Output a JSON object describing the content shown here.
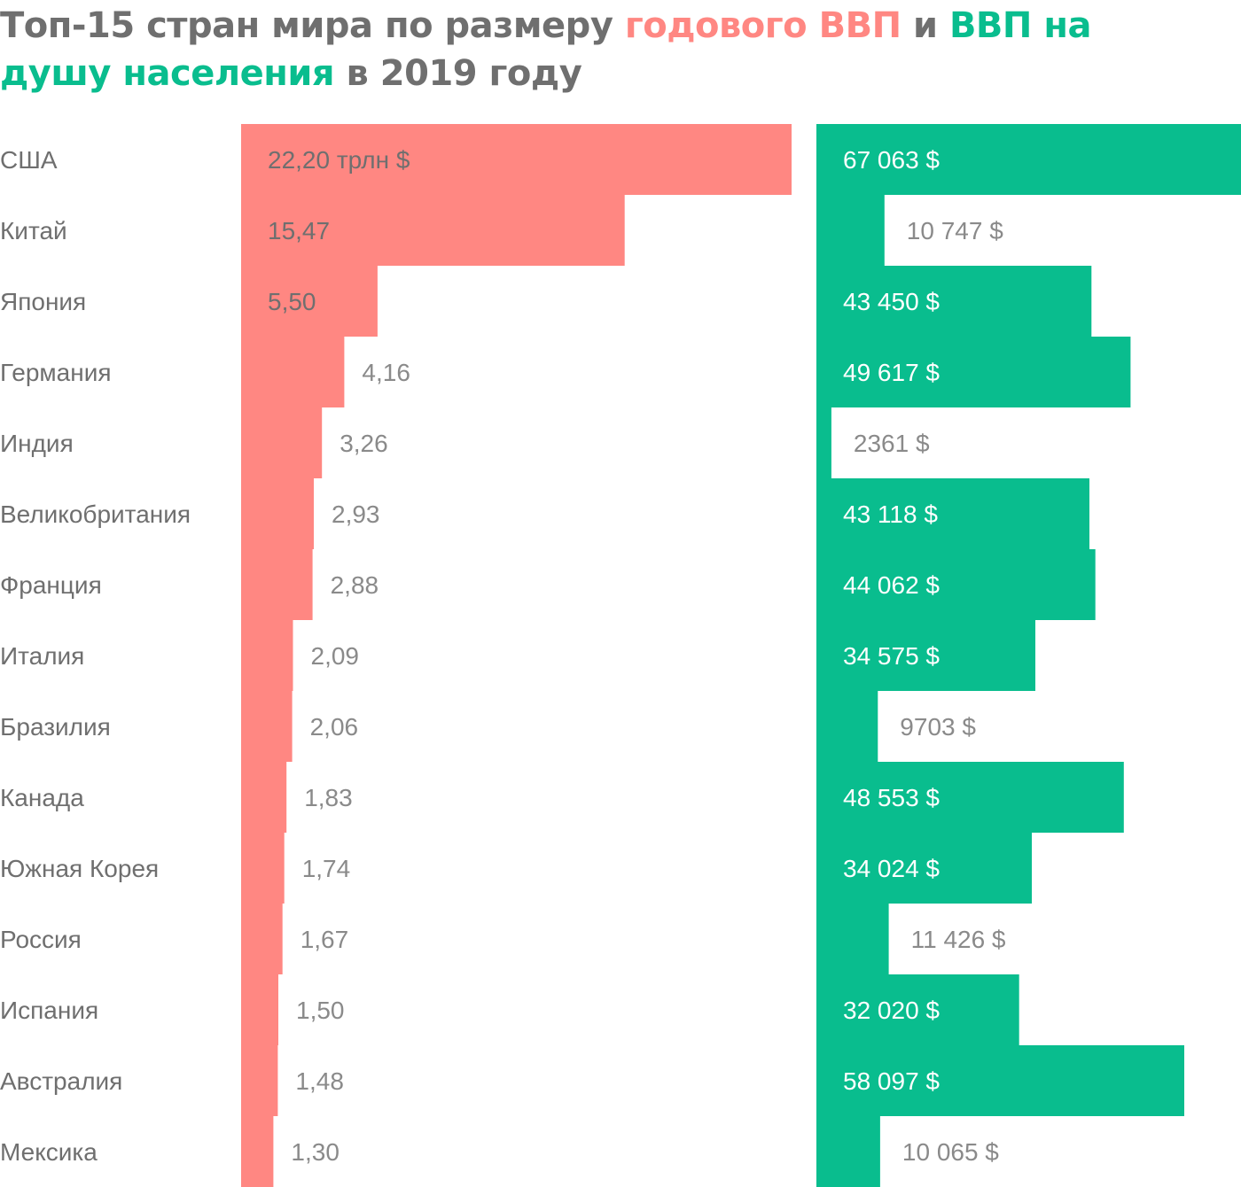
{
  "title": {
    "part1": "Топ-15 стран мира по размеру ",
    "part2": "годового ВВП",
    "part3": " и ",
    "part4": "ВВП на душу населения",
    "part5": " в 2019 году"
  },
  "colors": {
    "gdp": "#ff8782",
    "per_capita": "#09bd8e",
    "text": "#6f6f6f",
    "text_on_bar": "#ffffff",
    "title": "#6f6f6f"
  },
  "chart_data": {
    "type": "bar",
    "orientation": "horizontal",
    "categories": [
      "США",
      "Китай",
      "Япония",
      "Германия",
      "Индия",
      "Великобритания",
      "Франция",
      "Италия",
      "Бразилия",
      "Канада",
      "Южная Корея",
      "Россия",
      "Испания",
      "Австралия",
      "Мексика"
    ],
    "series": [
      {
        "key": "gdp",
        "values": [
          22.2,
          15.47,
          5.5,
          4.16,
          3.26,
          2.93,
          2.88,
          2.09,
          2.06,
          1.83,
          1.74,
          1.67,
          1.5,
          1.48,
          1.3
        ],
        "labels": [
          "22,20 трлн $",
          "15,47",
          "5,50",
          "4,16",
          "3,26",
          "2,93",
          "2,88",
          "2,09",
          "2,06",
          "1,83",
          "1,74",
          "1,67",
          "1,50",
          "1,48",
          "1,30"
        ]
      },
      {
        "key": "per_capita",
        "values": [
          67063,
          10747,
          43450,
          49617,
          2361,
          43118,
          44062,
          34575,
          9703,
          48553,
          34024,
          11426,
          32020,
          58097,
          10065
        ],
        "labels": [
          "67 063 $",
          "10 747 $",
          "43 450 $",
          "49 617 $",
          "2361 $",
          "43 118 $",
          "44 062 $",
          "34 575 $",
          "9703 $",
          "48 553 $",
          "34 024 $",
          "11 426 $",
          "32 020 $",
          "58 097 $",
          "10 065 $"
        ]
      }
    ]
  }
}
